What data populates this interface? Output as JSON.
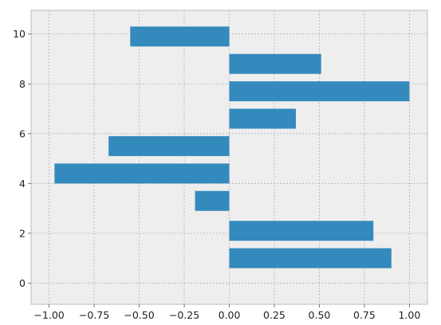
{
  "chart_data": {
    "type": "bar",
    "orientation": "horizontal",
    "title": "",
    "xlabel": "",
    "ylabel": "",
    "xlim": [
      -1.1,
      1.1
    ],
    "ylim": [
      -0.85,
      10.95
    ],
    "x_ticks": [
      -1.0,
      -0.75,
      -0.5,
      -0.25,
      0.0,
      0.25,
      0.5,
      0.75,
      1.0
    ],
    "x_tick_labels": [
      "−1.00",
      "−0.75",
      "−0.50",
      "−0.25",
      "0.00",
      "0.25",
      "0.50",
      "0.75",
      "1.00"
    ],
    "y_ticks": [
      0,
      2,
      4,
      6,
      8,
      10
    ],
    "y_tick_labels": [
      "0",
      "2",
      "4",
      "6",
      "8",
      "10"
    ],
    "grid": true,
    "bar_height": 0.8,
    "bars": [
      {
        "y": 1,
        "value": 0.9
      },
      {
        "y": 2.1,
        "value": 0.8
      },
      {
        "y": 3.3,
        "value": -0.19
      },
      {
        "y": 4.4,
        "value": -0.97
      },
      {
        "y": 5.5,
        "value": -0.67
      },
      {
        "y": 6.6,
        "value": 0.37
      },
      {
        "y": 7.7,
        "value": 1.0
      },
      {
        "y": 8.8,
        "value": 0.51
      },
      {
        "y": 9.9,
        "value": -0.55
      }
    ],
    "colors": {
      "bar": "#348abd",
      "plot_background": "#eeeeee",
      "grid": "#b2b2b2",
      "spine": "#bcbcbc"
    }
  }
}
